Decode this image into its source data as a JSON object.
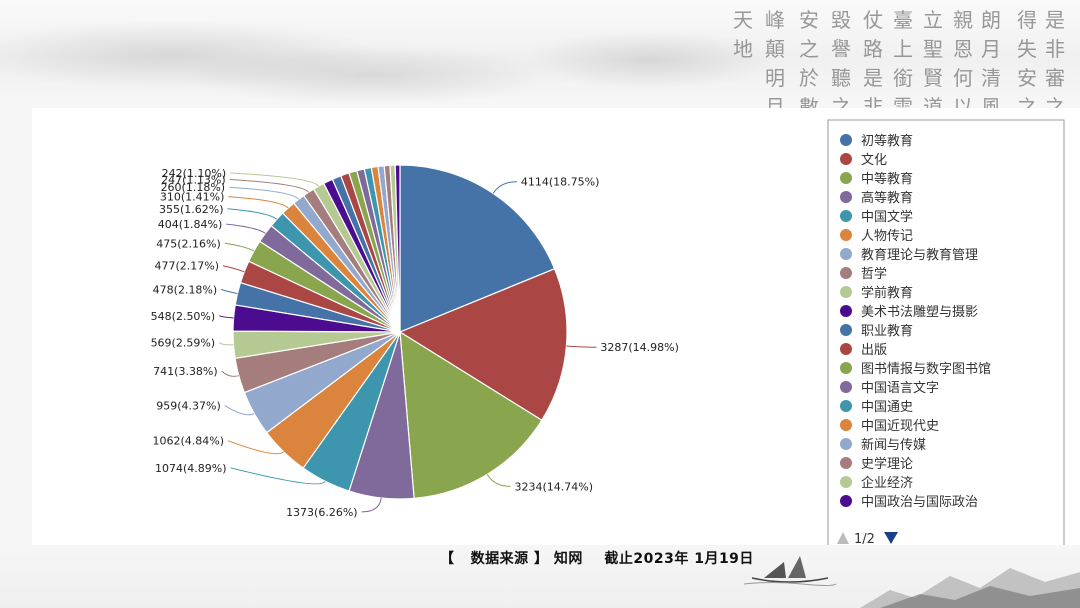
{
  "calligraphy_columns": [
    "是非審之",
    "得失安之",
    "朗月清風",
    "親恩何以",
    "立聖賢道",
    "臺上銜雲",
    "仗路是非",
    "毀譽聽之",
    "安之於數",
    "峰顛明月",
    "天地"
  ],
  "chart_data": {
    "type": "pie",
    "title": "",
    "start_angle_deg": 0,
    "slices": [
      {
        "label": "初等教育",
        "value": 4114,
        "pct": "18.75%",
        "color": "#4572A7"
      },
      {
        "label": "文化",
        "value": 3287,
        "pct": "14.98%",
        "color": "#AA4643"
      },
      {
        "label": "中等教育",
        "value": 3234,
        "pct": "14.74%",
        "color": "#89A54E"
      },
      {
        "label": "高等教育",
        "value": 1373,
        "pct": "6.26%",
        "color": "#80699B"
      },
      {
        "label": "中国文学",
        "value": 1074,
        "pct": "4.89%",
        "color": "#3D96AE"
      },
      {
        "label": "人物传记",
        "value": 1062,
        "pct": "4.84%",
        "color": "#DB843D"
      },
      {
        "label": "教育理论与教育管理",
        "value": 959,
        "pct": "4.37%",
        "color": "#92A8CD"
      },
      {
        "label": "哲学",
        "value": 741,
        "pct": "3.38%",
        "color": "#A47D7C"
      },
      {
        "label": "学前教育",
        "value": 569,
        "pct": "2.59%",
        "color": "#B5CA92"
      },
      {
        "label": "美术书法雕塑与摄影",
        "value": 548,
        "pct": "2.50%",
        "color": "#4B0C8F"
      },
      {
        "label": "职业教育",
        "value": 478,
        "pct": "2.18%",
        "color": "#4572A7"
      },
      {
        "label": "出版",
        "value": 477,
        "pct": "2.17%",
        "color": "#AA4643"
      },
      {
        "label": "图书情报与数字图书馆",
        "value": 475,
        "pct": "2.16%",
        "color": "#89A54E"
      },
      {
        "label": "中国语言文字",
        "value": 404,
        "pct": "1.84%",
        "color": "#80699B"
      },
      {
        "label": "中国通史",
        "value": 355,
        "pct": "1.62%",
        "color": "#3D96AE"
      },
      {
        "label": "中国近现代史",
        "value": 310,
        "pct": "1.41%",
        "color": "#DB843D"
      },
      {
        "label": "新闻与传媒",
        "value": 260,
        "pct": "1.18%",
        "color": "#92A8CD"
      },
      {
        "label": "史学理论",
        "value": 247,
        "pct": "1.13%",
        "color": "#A47D7C"
      },
      {
        "label": "企业经济",
        "value": 242,
        "pct": "1.10%",
        "color": "#B5CA92"
      },
      {
        "label": "中国政治与国际政治",
        "value": 200,
        "color": "#4B0C8F"
      },
      {
        "value": 190,
        "color": "#4572A7"
      },
      {
        "value": 180,
        "color": "#AA4643"
      },
      {
        "value": 170,
        "color": "#89A54E"
      },
      {
        "value": 160,
        "color": "#80699B"
      },
      {
        "value": 150,
        "color": "#3D96AE"
      },
      {
        "value": 140,
        "color": "#DB843D"
      },
      {
        "value": 130,
        "color": "#92A8CD"
      },
      {
        "value": 120,
        "color": "#A47D7C"
      },
      {
        "value": 110,
        "color": "#B5CA92"
      },
      {
        "value": 100,
        "color": "#4B0C8F"
      }
    ],
    "data_labels": [
      "4114(18.75%)",
      "3287(14.98%)",
      "3234(14.74%)",
      "1373(6.26%)",
      "1074(4.89%)",
      "1062(4.84%)",
      "959(4.37%)",
      "741(3.38%)",
      "569(2.59%)",
      "548(2.50%)",
      "478(2.18%)",
      "477(2.17%)",
      "475(2.16%)",
      "404(1.84%)",
      "355(1.62%)",
      "310(1.41%)",
      "260(1.18%)",
      "247(1.13%)",
      "242(1.10%)"
    ],
    "legend": {
      "placement": "right",
      "items": [
        "初等教育",
        "文化",
        "中等教育",
        "高等教育",
        "中国文学",
        "人物传记",
        "教育理论与教育管理",
        "哲学",
        "学前教育",
        "美术书法雕塑与摄影",
        "职业教育",
        "出版",
        "图书情报与数字图书馆",
        "中国语言文字",
        "中国通史",
        "中国近现代史",
        "新闻与传媒",
        "史学理论",
        "企业经济",
        "中国政治与国际政治"
      ],
      "page_indicator": "1/2",
      "prev_icon": "triangle-up-icon",
      "next_icon": "triangle-down-icon",
      "nav_active_color": "#1a3f8c",
      "nav_inactive_color": "#bbbbbb"
    }
  },
  "source_note": "【   数据来源 】 知网    截止2023年 1月19日"
}
